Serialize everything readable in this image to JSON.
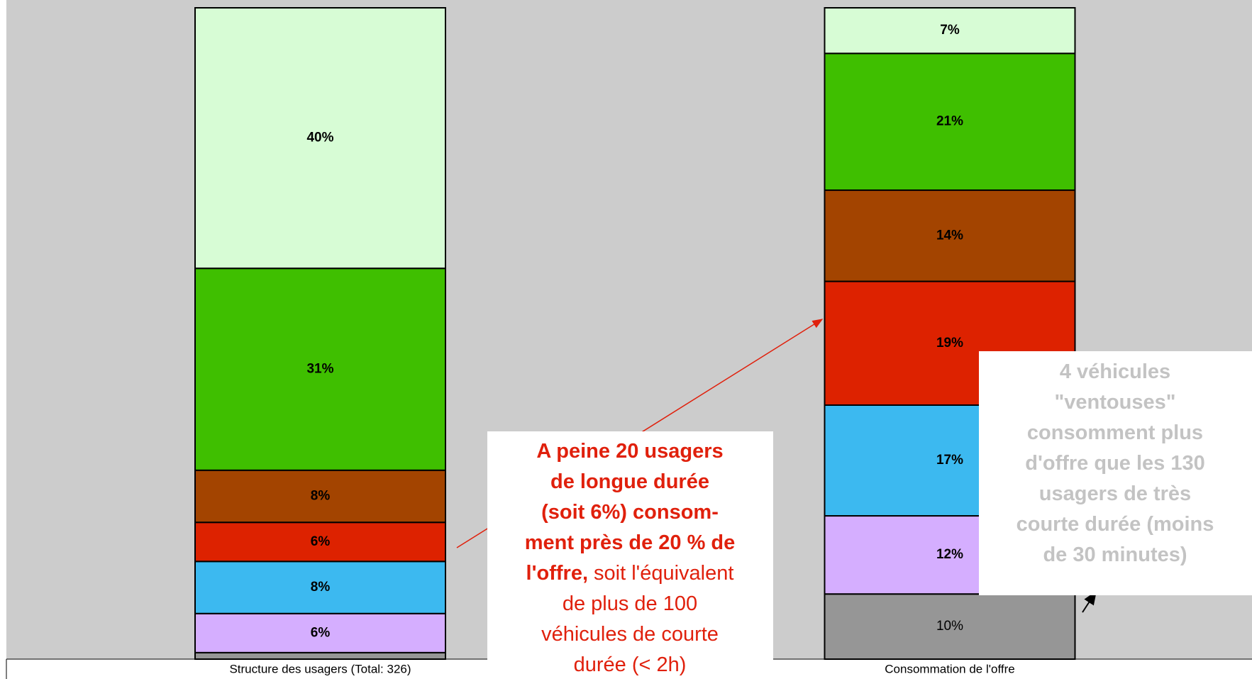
{
  "chart_data": {
    "type": "stacked_bar",
    "categories": [
      "Structure des usagers (Total: 326)",
      "Consommation de l'offre"
    ],
    "ylim": [
      0,
      100
    ],
    "background": "#cccccc",
    "series": [
      {
        "color": "#969696",
        "values": [
          1,
          10
        ],
        "value_labels": [
          null,
          "10%"
        ],
        "label_bold": false
      },
      {
        "color": "#d5aeff",
        "values": [
          6,
          12
        ],
        "value_labels": [
          "6%",
          "12%"
        ],
        "label_bold": true
      },
      {
        "color": "#3cb9f0",
        "values": [
          8,
          17
        ],
        "value_labels": [
          "8%",
          "17%"
        ],
        "label_bold": true
      },
      {
        "color": "#dd2200",
        "values": [
          6,
          19
        ],
        "value_labels": [
          "6%",
          "19%"
        ],
        "label_bold": true
      },
      {
        "color": "#a34400",
        "values": [
          8,
          14
        ],
        "value_labels": [
          "8%",
          "14%"
        ],
        "label_bold": true
      },
      {
        "color": "#3fbf00",
        "values": [
          31,
          21
        ],
        "value_labels": [
          "31%",
          "21%"
        ],
        "label_bold": true
      },
      {
        "color": "#d7fcd5",
        "values": [
          40,
          7
        ],
        "value_labels": [
          "40%",
          "7%"
        ],
        "label_bold": true
      }
    ],
    "annotations": [
      {
        "color": "#e0200c",
        "lines": [
          [
            {
              "text": "A peine 20 usagers",
              "bold": true
            }
          ],
          [
            {
              "text": "de longue durée",
              "bold": true
            }
          ],
          [
            {
              "text": "(soit 6%) consom-",
              "bold": true
            }
          ],
          [
            {
              "text": "ment près de 20 % de",
              "bold": true
            }
          ],
          [
            {
              "text": "l'offre,",
              "bold": true
            },
            {
              "text": " soit l'équivalent",
              "bold": false
            }
          ],
          [
            {
              "text": "de plus de 100",
              "bold": false
            }
          ],
          [
            {
              "text": "véhicules de courte",
              "bold": false
            }
          ],
          [
            {
              "text": "durée (< 2h)",
              "bold": false
            }
          ]
        ]
      },
      {
        "color": "#c3c3c3",
        "lines": [
          [
            {
              "text": "4 véhicules",
              "bold": true
            }
          ],
          [
            {
              "text": "\"ventouses\"",
              "bold": true
            }
          ],
          [
            {
              "text": "consomment plus",
              "bold": true
            }
          ],
          [
            {
              "text": "d'offre que les 130",
              "bold": true
            }
          ],
          [
            {
              "text": "usagers de très",
              "bold": true
            }
          ],
          [
            {
              "text": "courte durée (moins",
              "bold": true
            }
          ],
          [
            {
              "text": "de 30 minutes)",
              "bold": true
            }
          ]
        ]
      }
    ]
  }
}
